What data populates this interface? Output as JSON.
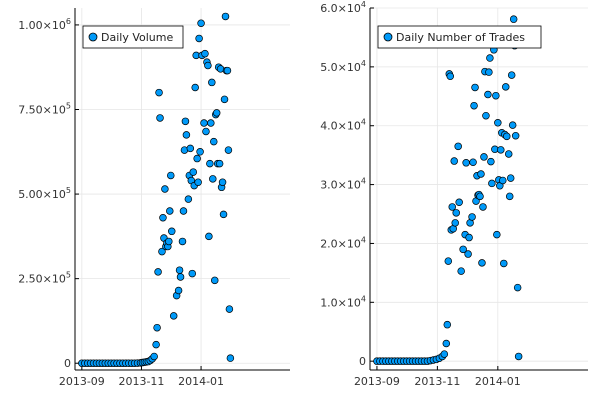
{
  "chart_data": [
    {
      "type": "scatter",
      "x_type": "date",
      "xlim": [
        "2013-08-25",
        "2014-04-02"
      ],
      "ylim": [
        -20000,
        1050000
      ],
      "xticks": [
        "2013-09-01",
        "2013-11-01",
        "2014-01-01"
      ],
      "xtick_labels": [
        "2013-09",
        "2013-11",
        "2014-01"
      ],
      "yticks": [
        0,
        250000,
        500000,
        750000,
        1000000
      ],
      "ytick_labels": [
        {
          "mantissa": "0",
          "exponent": ""
        },
        {
          "mantissa": "2.50×10",
          "exponent": "5"
        },
        {
          "mantissa": "5.00×10",
          "exponent": "5"
        },
        {
          "mantissa": "7.50×10",
          "exponent": "5"
        },
        {
          "mantissa": "1.00×10",
          "exponent": "6"
        }
      ],
      "grid": true,
      "legend_position": "top-left",
      "title": "",
      "xlabel": "",
      "ylabel": "",
      "series": [
        {
          "name": "Daily Volume",
          "color": "#009af9",
          "points": [
            [
              "2013-09-01",
              0
            ],
            [
              "2013-09-04",
              0
            ],
            [
              "2013-09-07",
              0
            ],
            [
              "2013-09-10",
              0
            ],
            [
              "2013-09-13",
              0
            ],
            [
              "2013-09-16",
              0
            ],
            [
              "2013-09-19",
              0
            ],
            [
              "2013-09-22",
              0
            ],
            [
              "2013-09-25",
              0
            ],
            [
              "2013-09-28",
              0
            ],
            [
              "2013-10-01",
              0
            ],
            [
              "2013-10-04",
              0
            ],
            [
              "2013-10-07",
              0
            ],
            [
              "2013-10-10",
              0
            ],
            [
              "2013-10-13",
              0
            ],
            [
              "2013-10-16",
              0
            ],
            [
              "2013-10-19",
              0
            ],
            [
              "2013-10-22",
              0
            ],
            [
              "2013-10-25",
              0
            ],
            [
              "2013-10-28",
              500
            ],
            [
              "2013-10-31",
              1000
            ],
            [
              "2013-11-02",
              2000
            ],
            [
              "2013-11-04",
              3000
            ],
            [
              "2013-11-06",
              4000
            ],
            [
              "2013-11-08",
              5000
            ],
            [
              "2013-11-10",
              8000
            ],
            [
              "2013-11-12",
              13000
            ],
            [
              "2013-11-14",
              20000
            ],
            [
              "2013-11-16",
              55000
            ],
            [
              "2013-11-17",
              105000
            ],
            [
              "2013-11-18",
              270000
            ],
            [
              "2013-11-19",
              800000
            ],
            [
              "2013-11-20",
              725000
            ],
            [
              "2013-11-22",
              330000
            ],
            [
              "2013-11-23",
              430000
            ],
            [
              "2013-11-24",
              370000
            ],
            [
              "2013-11-25",
              515000
            ],
            [
              "2013-11-26",
              345000
            ],
            [
              "2013-11-27",
              355000
            ],
            [
              "2013-11-28",
              345000
            ],
            [
              "2013-11-29",
              360000
            ],
            [
              "2013-11-30",
              450000
            ],
            [
              "2013-12-01",
              555000
            ],
            [
              "2013-12-02",
              390000
            ],
            [
              "2013-12-04",
              140000
            ],
            [
              "2013-12-07",
              200000
            ],
            [
              "2013-12-09",
              215000
            ],
            [
              "2013-12-10",
              275000
            ],
            [
              "2013-12-11",
              255000
            ],
            [
              "2013-12-13",
              360000
            ],
            [
              "2013-12-14",
              450000
            ],
            [
              "2013-12-15",
              630000
            ],
            [
              "2013-12-16",
              715000
            ],
            [
              "2013-12-17",
              675000
            ],
            [
              "2013-12-19",
              485000
            ],
            [
              "2013-12-20",
              555000
            ],
            [
              "2013-12-21",
              635000
            ],
            [
              "2013-12-22",
              540000
            ],
            [
              "2013-12-23",
              265000
            ],
            [
              "2013-12-24",
              565000
            ],
            [
              "2013-12-25",
              525000
            ],
            [
              "2013-12-26",
              815000
            ],
            [
              "2013-12-27",
              910000
            ],
            [
              "2013-12-28",
              605000
            ],
            [
              "2013-12-29",
              535000
            ],
            [
              "2013-12-30",
              960000
            ],
            [
              "2013-12-31",
              625000
            ],
            [
              "2014-01-01",
              1005000
            ],
            [
              "2014-01-02",
              910000
            ],
            [
              "2014-01-04",
              710000
            ],
            [
              "2014-01-05",
              915000
            ],
            [
              "2014-01-06",
              685000
            ],
            [
              "2014-01-07",
              890000
            ],
            [
              "2014-01-08",
              880000
            ],
            [
              "2014-01-09",
              375000
            ],
            [
              "2014-01-10",
              590000
            ],
            [
              "2014-01-11",
              710000
            ],
            [
              "2014-01-12",
              830000
            ],
            [
              "2014-01-13",
              545000
            ],
            [
              "2014-01-14",
              655000
            ],
            [
              "2014-01-15",
              245000
            ],
            [
              "2014-01-16",
              735000
            ],
            [
              "2014-01-17",
              740000
            ],
            [
              "2014-01-18",
              590000
            ],
            [
              "2014-01-19",
              875000
            ],
            [
              "2014-01-20",
              590000
            ],
            [
              "2014-01-21",
              870000
            ],
            [
              "2014-01-22",
              520000
            ],
            [
              "2014-01-23",
              535000
            ],
            [
              "2014-01-24",
              440000
            ],
            [
              "2014-01-25",
              780000
            ],
            [
              "2014-01-26",
              1025000
            ],
            [
              "2014-01-27",
              865000
            ],
            [
              "2014-01-28",
              865000
            ],
            [
              "2014-01-29",
              630000
            ],
            [
              "2014-01-30",
              160000
            ],
            [
              "2014-01-31",
              15000
            ]
          ]
        }
      ]
    },
    {
      "type": "scatter",
      "x_type": "date",
      "xlim": [
        "2013-08-25",
        "2014-04-02"
      ],
      "ylim": [
        -1500,
        60000
      ],
      "xticks": [
        "2013-09-01",
        "2013-11-01",
        "2014-01-01"
      ],
      "xtick_labels": [
        "2013-09",
        "2013-11",
        "2014-01"
      ],
      "yticks": [
        0,
        10000,
        20000,
        30000,
        40000,
        50000,
        60000
      ],
      "ytick_labels": [
        {
          "mantissa": "0",
          "exponent": ""
        },
        {
          "mantissa": "1.0×10",
          "exponent": "4"
        },
        {
          "mantissa": "2.0×10",
          "exponent": "4"
        },
        {
          "mantissa": "3.0×10",
          "exponent": "4"
        },
        {
          "mantissa": "4.0×10",
          "exponent": "4"
        },
        {
          "mantissa": "5.0×10",
          "exponent": "4"
        },
        {
          "mantissa": "6.0×10",
          "exponent": "4"
        }
      ],
      "grid": true,
      "legend_position": "top-left",
      "title": "",
      "xlabel": "",
      "ylabel": "",
      "series": [
        {
          "name": "Daily Number of Trades",
          "color": "#009af9",
          "points": [
            [
              "2013-09-01",
              0
            ],
            [
              "2013-09-04",
              0
            ],
            [
              "2013-09-07",
              0
            ],
            [
              "2013-09-10",
              0
            ],
            [
              "2013-09-13",
              0
            ],
            [
              "2013-09-16",
              0
            ],
            [
              "2013-09-19",
              0
            ],
            [
              "2013-09-22",
              0
            ],
            [
              "2013-09-25",
              0
            ],
            [
              "2013-09-28",
              0
            ],
            [
              "2013-10-01",
              0
            ],
            [
              "2013-10-04",
              0
            ],
            [
              "2013-10-07",
              0
            ],
            [
              "2013-10-10",
              0
            ],
            [
              "2013-10-13",
              0
            ],
            [
              "2013-10-16",
              0
            ],
            [
              "2013-10-19",
              0
            ],
            [
              "2013-10-22",
              0
            ],
            [
              "2013-10-25",
              100
            ],
            [
              "2013-10-28",
              200
            ],
            [
              "2013-10-31",
              300
            ],
            [
              "2013-11-03",
              500
            ],
            [
              "2013-11-06",
              800
            ],
            [
              "2013-11-08",
              1200
            ],
            [
              "2013-11-10",
              3000
            ],
            [
              "2013-11-11",
              6200
            ],
            [
              "2013-11-12",
              17000
            ],
            [
              "2013-11-13",
              48800
            ],
            [
              "2013-11-14",
              48400
            ],
            [
              "2013-11-15",
              22300
            ],
            [
              "2013-11-16",
              26200
            ],
            [
              "2013-11-17",
              22500
            ],
            [
              "2013-11-18",
              34000
            ],
            [
              "2013-11-19",
              23500
            ],
            [
              "2013-11-20",
              25200
            ],
            [
              "2013-11-22",
              36500
            ],
            [
              "2013-11-23",
              27000
            ],
            [
              "2013-11-25",
              15300
            ],
            [
              "2013-11-27",
              19000
            ],
            [
              "2013-11-29",
              21500
            ],
            [
              "2013-11-30",
              33700
            ],
            [
              "2013-12-02",
              18200
            ],
            [
              "2013-12-03",
              21000
            ],
            [
              "2013-12-04",
              23500
            ],
            [
              "2013-12-06",
              24500
            ],
            [
              "2013-12-07",
              33800
            ],
            [
              "2013-12-08",
              43400
            ],
            [
              "2013-12-09",
              46500
            ],
            [
              "2013-12-10",
              27200
            ],
            [
              "2013-12-11",
              31500
            ],
            [
              "2013-12-12",
              28200
            ],
            [
              "2013-12-13",
              28300
            ],
            [
              "2013-12-14",
              28000
            ],
            [
              "2013-12-15",
              31800
            ],
            [
              "2013-12-16",
              16700
            ],
            [
              "2013-12-17",
              26200
            ],
            [
              "2013-12-18",
              34700
            ],
            [
              "2013-12-19",
              49200
            ],
            [
              "2013-12-20",
              41700
            ],
            [
              "2013-12-22",
              45300
            ],
            [
              "2013-12-23",
              49100
            ],
            [
              "2013-12-24",
              51500
            ],
            [
              "2013-12-25",
              33900
            ],
            [
              "2013-12-26",
              30200
            ],
            [
              "2013-12-27",
              54500
            ],
            [
              "2013-12-28",
              52900
            ],
            [
              "2013-12-29",
              36000
            ],
            [
              "2013-12-30",
              45100
            ],
            [
              "2013-12-31",
              21500
            ],
            [
              "2014-01-01",
              40500
            ],
            [
              "2014-01-02",
              30800
            ],
            [
              "2014-01-03",
              29800
            ],
            [
              "2014-01-04",
              35900
            ],
            [
              "2014-01-05",
              38800
            ],
            [
              "2014-01-06",
              30700
            ],
            [
              "2014-01-07",
              16600
            ],
            [
              "2014-01-08",
              38500
            ],
            [
              "2014-01-09",
              46600
            ],
            [
              "2014-01-10",
              38200
            ],
            [
              "2014-01-12",
              35200
            ],
            [
              "2014-01-13",
              28000
            ],
            [
              "2014-01-14",
              31100
            ],
            [
              "2014-01-15",
              48600
            ],
            [
              "2014-01-16",
              40100
            ],
            [
              "2014-01-17",
              58100
            ],
            [
              "2014-01-18",
              53600
            ],
            [
              "2014-01-19",
              38300
            ],
            [
              "2014-01-21",
              12500
            ],
            [
              "2014-01-22",
              800
            ]
          ]
        }
      ]
    }
  ]
}
